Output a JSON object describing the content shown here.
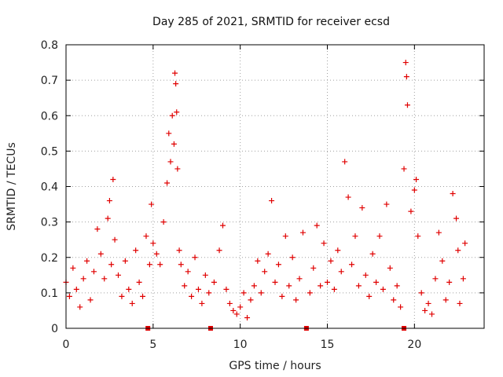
{
  "chart_data": {
    "type": "scatter",
    "title": "Day 285 of 2021, SRMTID for receiver ecsd",
    "xlabel": "GPS time / hours",
    "ylabel": "SRMTID / TECUs",
    "xlim": [
      0,
      24
    ],
    "ylim": [
      0,
      0.8
    ],
    "x_ticks": [
      0,
      5,
      10,
      15,
      20
    ],
    "x_tick_labels": [
      "0",
      "5",
      "10",
      "15",
      "20"
    ],
    "y_ticks": [
      0,
      0.1,
      0.2,
      0.3,
      0.4,
      0.5,
      0.6,
      0.7,
      0.8
    ],
    "y_tick_labels": [
      "0",
      "0.1",
      "0.2",
      "0.3",
      "0.4",
      "0.5",
      "0.6",
      "0.7",
      "0.8"
    ],
    "grid": true,
    "marker": "+",
    "color": "#e00000",
    "gap_markers_x": [
      4.7,
      8.3,
      13.8,
      19.4
    ],
    "series": [
      {
        "name": "SRMTID",
        "x": [
          0.0,
          0.2,
          0.4,
          0.6,
          0.8,
          1.0,
          1.2,
          1.4,
          1.6,
          1.8,
          2.0,
          2.2,
          2.4,
          2.5,
          2.6,
          2.7,
          2.8,
          3.0,
          3.2,
          3.4,
          3.6,
          3.8,
          4.0,
          4.2,
          4.4,
          4.6,
          4.8,
          4.9,
          5.0,
          5.2,
          5.4,
          5.6,
          5.8,
          5.9,
          6.0,
          6.1,
          6.2,
          6.25,
          6.3,
          6.35,
          6.4,
          6.5,
          6.6,
          6.8,
          7.0,
          7.2,
          7.4,
          7.6,
          7.8,
          8.0,
          8.2,
          8.5,
          8.8,
          9.0,
          9.2,
          9.4,
          9.6,
          9.8,
          10.0,
          10.2,
          10.4,
          10.6,
          10.8,
          11.0,
          11.2,
          11.4,
          11.6,
          11.8,
          12.0,
          12.2,
          12.4,
          12.6,
          12.8,
          13.0,
          13.2,
          13.4,
          13.6,
          14.0,
          14.2,
          14.4,
          14.6,
          14.8,
          15.0,
          15.2,
          15.4,
          15.6,
          15.8,
          16.0,
          16.2,
          16.4,
          16.6,
          16.8,
          17.0,
          17.2,
          17.4,
          17.6,
          17.8,
          18.0,
          18.2,
          18.4,
          18.6,
          18.8,
          19.0,
          19.2,
          19.4,
          19.5,
          19.55,
          19.6,
          19.8,
          20.0,
          20.1,
          20.2,
          20.4,
          20.6,
          20.8,
          21.0,
          21.2,
          21.4,
          21.6,
          21.8,
          22.0,
          22.2,
          22.4,
          22.5,
          22.6,
          22.8,
          22.9
        ],
        "y": [
          0.13,
          0.09,
          0.17,
          0.11,
          0.06,
          0.14,
          0.19,
          0.08,
          0.16,
          0.28,
          0.21,
          0.14,
          0.31,
          0.36,
          0.18,
          0.42,
          0.25,
          0.15,
          0.09,
          0.19,
          0.11,
          0.07,
          0.22,
          0.13,
          0.09,
          0.26,
          0.18,
          0.35,
          0.24,
          0.21,
          0.18,
          0.3,
          0.41,
          0.55,
          0.47,
          0.6,
          0.52,
          0.72,
          0.69,
          0.61,
          0.45,
          0.22,
          0.18,
          0.12,
          0.16,
          0.09,
          0.2,
          0.11,
          0.07,
          0.15,
          0.1,
          0.13,
          0.22,
          0.29,
          0.11,
          0.07,
          0.05,
          0.04,
          0.06,
          0.1,
          0.03,
          0.08,
          0.12,
          0.19,
          0.1,
          0.16,
          0.21,
          0.36,
          0.13,
          0.18,
          0.09,
          0.26,
          0.12,
          0.2,
          0.08,
          0.14,
          0.27,
          0.1,
          0.17,
          0.29,
          0.12,
          0.24,
          0.13,
          0.19,
          0.11,
          0.22,
          0.16,
          0.47,
          0.37,
          0.18,
          0.26,
          0.12,
          0.34,
          0.15,
          0.09,
          0.21,
          0.13,
          0.26,
          0.11,
          0.35,
          0.17,
          0.08,
          0.12,
          0.06,
          0.45,
          0.75,
          0.71,
          0.63,
          0.33,
          0.39,
          0.42,
          0.26,
          0.1,
          0.05,
          0.07,
          0.04,
          0.14,
          0.27,
          0.19,
          0.08,
          0.13,
          0.38,
          0.31,
          0.22,
          0.07,
          0.14,
          0.24
        ]
      }
    ]
  }
}
